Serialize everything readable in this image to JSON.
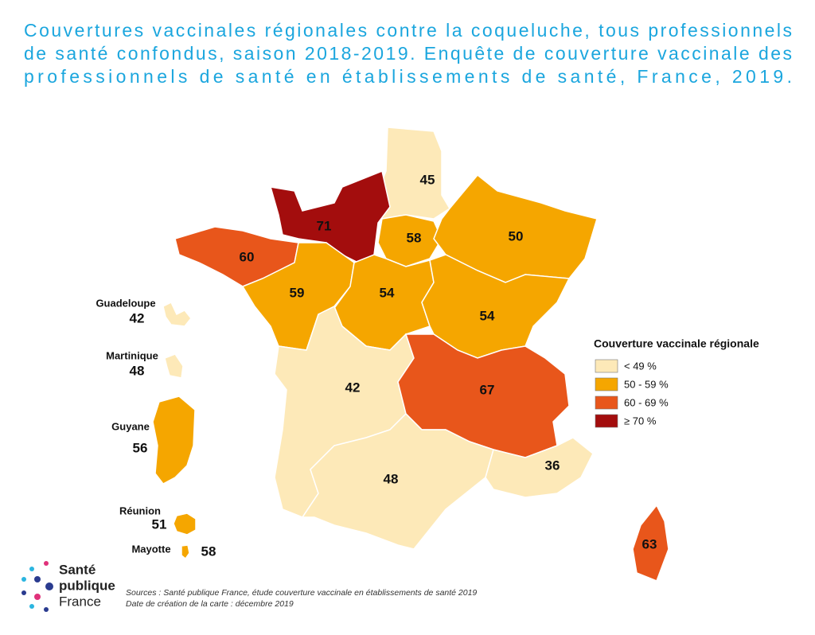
{
  "title": [
    "Couvertures vaccinales régionales contre la coqueluche, tous professionnels",
    "de santé confondus, saison 2018-2019. Enquête de couverture vaccinale des",
    "professionnels de santé en établissements de santé, France, 2019."
  ],
  "regions": [
    {
      "value": 45,
      "color": "#fde9b8"
    },
    {
      "value": 71,
      "color": "#a30d0d"
    },
    {
      "value": 58,
      "color": "#f5a600"
    },
    {
      "value": 50,
      "color": "#f5a600"
    },
    {
      "value": 60,
      "color": "#e8561b"
    },
    {
      "value": 59,
      "color": "#f5a600"
    },
    {
      "value": 54,
      "color": "#f5a600"
    },
    {
      "value": 54,
      "color": "#f5a600"
    },
    {
      "value": 42,
      "color": "#fde9b8"
    },
    {
      "value": 67,
      "color": "#e8561b"
    },
    {
      "value": 48,
      "color": "#fde9b8"
    },
    {
      "value": 36,
      "color": "#fde9b8"
    },
    {
      "value": 63,
      "color": "#e8561b"
    },
    {
      "name": "Guadeloupe",
      "value": 42,
      "color": "#fde9b8"
    },
    {
      "name": "Martinique",
      "value": 48,
      "color": "#fde9b8"
    },
    {
      "name": "Guyane",
      "value": 56,
      "color": "#f5a600"
    },
    {
      "name": "Réunion",
      "value": 51,
      "color": "#f5a600"
    },
    {
      "name": "Mayotte",
      "value": 58,
      "color": "#f5a600"
    }
  ],
  "legend": {
    "title": "Couverture vaccinale régionale",
    "items": [
      {
        "label": "< 49 %",
        "color": "#fde9b8"
      },
      {
        "label": "50 - 59 %",
        "color": "#f5a600"
      },
      {
        "label": "60 - 69 %",
        "color": "#e8561b"
      },
      {
        "label": "≥ 70 %",
        "color": "#a30d0d"
      }
    ]
  },
  "logo": [
    "Santé",
    "publique",
    "France"
  ],
  "sources": [
    "Sources : Santé publique France, étude couverture vaccinale en établissements de santé 2019",
    "Date de création de la carte : décembre 2019"
  ]
}
